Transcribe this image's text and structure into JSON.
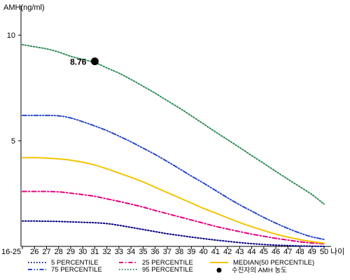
{
  "chart_data": {
    "type": "line",
    "ylabel": "AMH(ng/ml)",
    "xlabel": "나이",
    "categories": [
      "16-25",
      "26",
      "27",
      "28",
      "29",
      "30",
      "31",
      "32",
      "33",
      "34",
      "35",
      "36",
      "37",
      "38",
      "39",
      "40",
      "41",
      "42",
      "43",
      "44",
      "45",
      "46",
      "47",
      "48",
      "49",
      "50"
    ],
    "yticks": [
      5,
      10
    ],
    "ylim": [
      0,
      11
    ],
    "grid": false,
    "legend_position": "bottom",
    "series": [
      {
        "name": "5 PERCENTILE",
        "color": "#000080",
        "dash": "dotted",
        "values": [
          1.2,
          1.2,
          1.19,
          1.18,
          1.16,
          1.14,
          1.12,
          1.08,
          1.0,
          0.9,
          0.8,
          0.7,
          0.6,
          0.52,
          0.44,
          0.37,
          0.3,
          0.24,
          0.18,
          0.13,
          0.09,
          0.06,
          0.04,
          0.02,
          0.01,
          0.0
        ]
      },
      {
        "name": "25 PERCENTILE",
        "color": "#e6007e",
        "dash": "dashdot",
        "values": [
          2.6,
          2.6,
          2.6,
          2.58,
          2.52,
          2.45,
          2.37,
          2.25,
          2.13,
          2.0,
          1.86,
          1.7,
          1.55,
          1.4,
          1.25,
          1.1,
          0.95,
          0.82,
          0.7,
          0.58,
          0.48,
          0.38,
          0.3,
          0.22,
          0.16,
          0.12
        ]
      },
      {
        "name": "MEDIAN(50 PERCENTILE)",
        "color": "#f5c400",
        "dash": "solid",
        "values": [
          4.2,
          4.2,
          4.18,
          4.14,
          4.08,
          3.98,
          3.85,
          3.67,
          3.47,
          3.27,
          3.05,
          2.8,
          2.55,
          2.3,
          2.05,
          1.8,
          1.58,
          1.35,
          1.13,
          0.93,
          0.75,
          0.58,
          0.44,
          0.32,
          0.23,
          0.15
        ]
      },
      {
        "name": "75 PERCENTILE",
        "color": "#2a49c8",
        "dash": "dashdotdot",
        "values": [
          6.2,
          6.2,
          6.2,
          6.18,
          6.08,
          5.9,
          5.7,
          5.48,
          5.22,
          4.95,
          4.65,
          4.35,
          4.02,
          3.68,
          3.33,
          3.0,
          2.65,
          2.3,
          1.97,
          1.67,
          1.37,
          1.1,
          0.85,
          0.63,
          0.45,
          0.33
        ]
      },
      {
        "name": "95 PERCENTILE",
        "color": "#2e8b57",
        "dash": "dotted",
        "values": [
          9.55,
          9.45,
          9.35,
          9.2,
          9.0,
          8.85,
          8.7,
          8.45,
          8.2,
          7.9,
          7.58,
          7.25,
          6.9,
          6.55,
          6.18,
          5.8,
          5.42,
          5.05,
          4.68,
          4.3,
          3.93,
          3.55,
          3.18,
          2.82,
          2.45,
          2.0
        ]
      }
    ],
    "patient_point": {
      "name": "수진자의 AMH 농도",
      "x": "31",
      "y": 8.76,
      "label": "8.76",
      "color": "#000000"
    }
  }
}
